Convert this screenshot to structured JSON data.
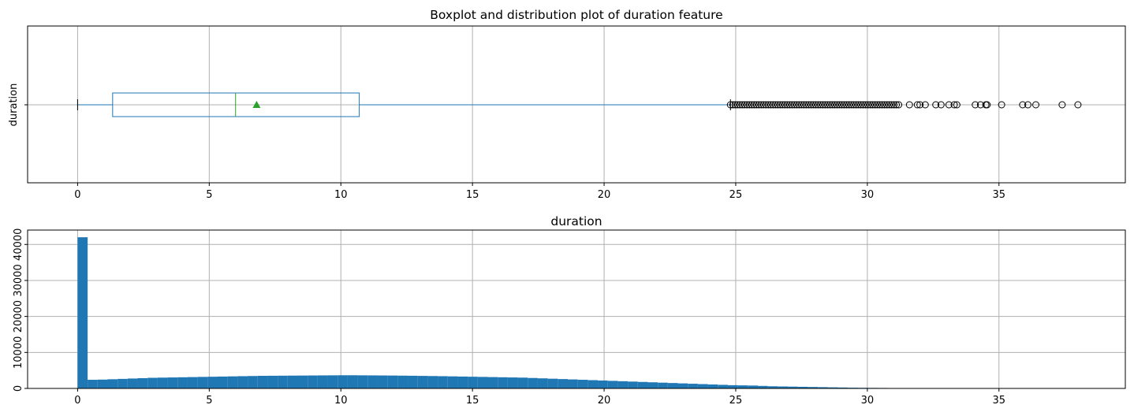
{
  "chart_data": [
    {
      "type": "boxplot",
      "title": "Boxplot and distribution plot of duration feature",
      "ylabel": "duration",
      "xlim": [
        -1.9,
        39.8
      ],
      "xticks": [
        0,
        5,
        10,
        15,
        20,
        25,
        30,
        35
      ],
      "grid": true,
      "orientation": "horizontal",
      "category": "duration",
      "box": {
        "min": 0,
        "q1": 1.33,
        "median": 6.0,
        "mean": 6.8,
        "q3": 10.7,
        "whisker_high": 24.8
      },
      "colors": {
        "box": "#1f77b4",
        "median": "#2ca02c",
        "mean": "#2ca02c",
        "outlier": "#000000"
      },
      "outliers_dense_range": [
        24.8,
        31.2
      ],
      "outliers": [
        31.6,
        31.9,
        32.0,
        32.2,
        32.6,
        32.8,
        33.1,
        33.3,
        33.4,
        34.1,
        34.3,
        34.5,
        34.55,
        35.1,
        35.9,
        36.1,
        36.4,
        37.4,
        38.0
      ]
    },
    {
      "type": "histogram",
      "title": "duration",
      "xlim": [
        -1.9,
        39.8
      ],
      "ylim": [
        0,
        44000
      ],
      "xticks": [
        0,
        5,
        10,
        15,
        20,
        25,
        30,
        35
      ],
      "yticks": [
        0,
        10000,
        20000,
        30000,
        40000
      ],
      "grid": true,
      "color": "#1f77b4",
      "bin_width": 0.38,
      "bin_start": 0,
      "counts": [
        42000,
        2400,
        2450,
        2550,
        2650,
        2750,
        2850,
        2950,
        3000,
        3050,
        3100,
        3150,
        3200,
        3250,
        3300,
        3350,
        3400,
        3450,
        3500,
        3520,
        3540,
        3560,
        3580,
        3600,
        3620,
        3640,
        3660,
        3660,
        3640,
        3620,
        3600,
        3580,
        3550,
        3520,
        3480,
        3440,
        3400,
        3350,
        3300,
        3250,
        3200,
        3150,
        3100,
        3050,
        3000,
        2900,
        2800,
        2700,
        2600,
        2500,
        2400,
        2300,
        2200,
        2100,
        2000,
        1900,
        1800,
        1700,
        1600,
        1500,
        1400,
        1300,
        1200,
        1100,
        1000,
        900,
        850,
        800,
        700,
        600,
        550,
        500,
        450,
        400,
        350,
        300,
        250,
        200,
        170,
        150,
        130,
        110,
        90,
        70,
        55,
        45,
        35,
        28,
        22,
        18,
        14,
        11,
        9,
        7,
        6,
        5,
        4,
        3,
        3,
        2
      ]
    }
  ]
}
